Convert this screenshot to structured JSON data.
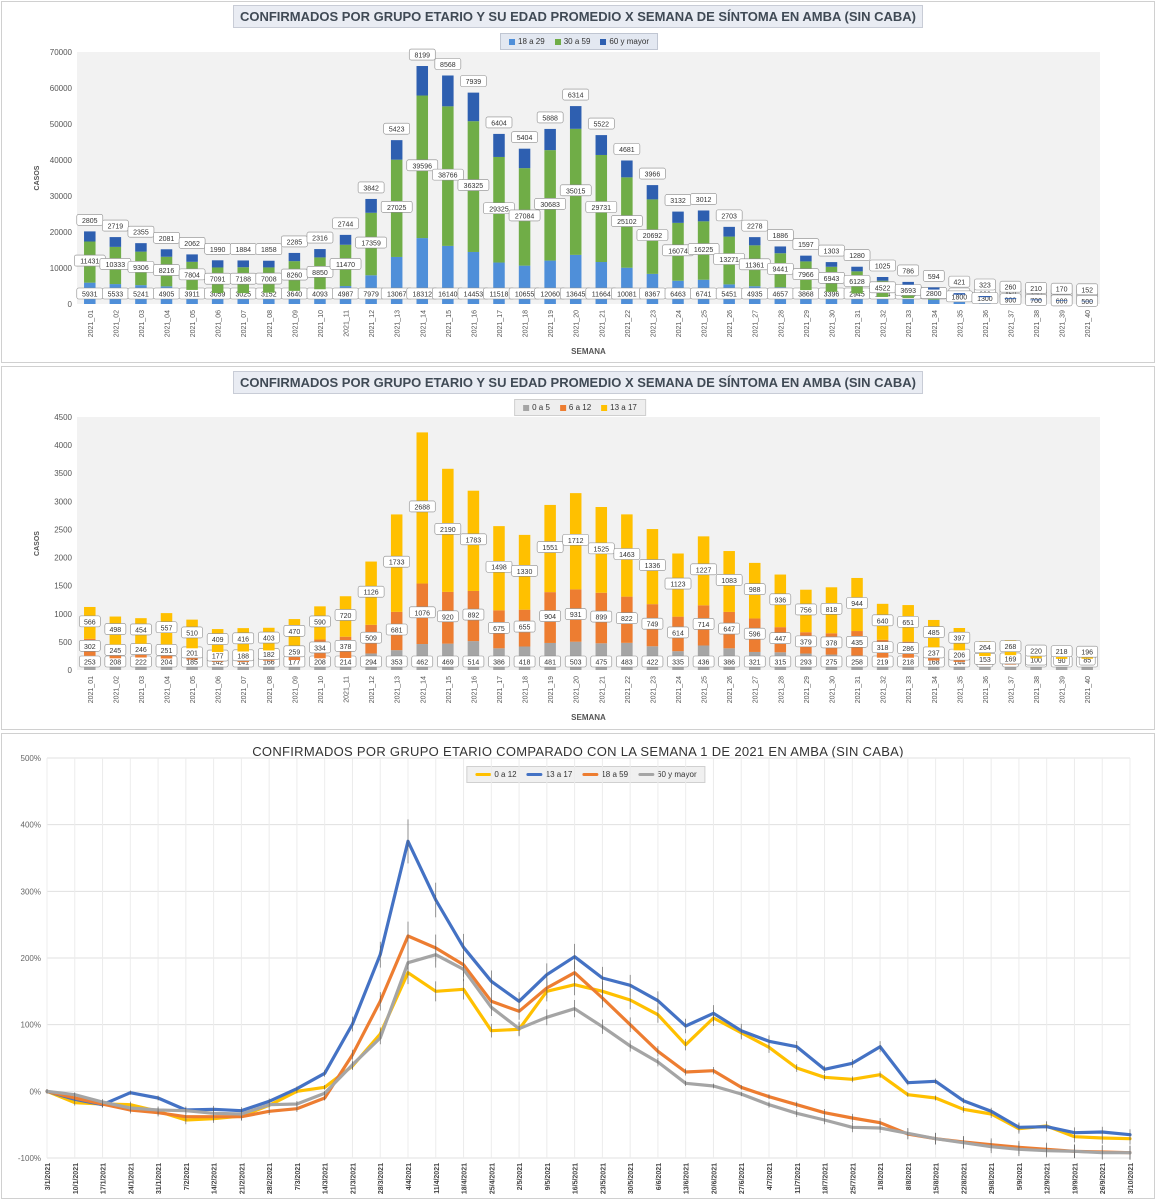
{
  "chart_data": [
    {
      "type": "bar",
      "stacked": true,
      "title": "CONFIRMADOS POR GRUPO ETARIO Y SU EDAD PROMEDIO X SEMANA DE SÍNTOMA EN AMBA (SIN CABA)",
      "xlabel": "SEMANA",
      "ylabel": "CASOS",
      "ylim": [
        0,
        70000
      ],
      "yticks": [
        "0",
        "10000",
        "20000",
        "30000",
        "40000",
        "50000",
        "60000",
        "70000"
      ],
      "grid": false,
      "legend": "top-center",
      "categories": [
        "2021_01",
        "2021_02",
        "2021_03",
        "2021_04",
        "2021_05",
        "2021_06",
        "2021_07",
        "2021_08",
        "2021_09",
        "2021_10",
        "2021_11",
        "2021_12",
        "2021_13",
        "2021_14",
        "2021_15",
        "2021_16",
        "2021_17",
        "2021_18",
        "2021_19",
        "2021_20",
        "2021_21",
        "2021_22",
        "2021_23",
        "2021_24",
        "2021_25",
        "2021_26",
        "2021_27",
        "2021_28",
        "2021_29",
        "2021_30",
        "2021_31",
        "2021_32",
        "2021_33",
        "2021_34",
        "2021_35",
        "2021_36",
        "2021_37",
        "2021_38",
        "2021_39",
        "2021_40"
      ],
      "series": [
        {
          "name": "18 a 29",
          "color": "#4f8fd9",
          "values": [
            5931,
            5533,
            5241,
            4905,
            3911,
            3059,
            3025,
            3152,
            3640,
            4093,
            4987,
            7979,
            13067,
            18312,
            16140,
            14453,
            11518,
            10655,
            12060,
            13645,
            11664,
            10081,
            8367,
            6463,
            6741,
            5451,
            4935,
            4657,
            3868,
            3396,
            2945,
            1954,
            1659,
            1209,
            800,
            600,
            450,
            350,
            280,
            230
          ]
        },
        {
          "name": "30 a 59",
          "color": "#70ad47",
          "values": [
            11431,
            10333,
            9306,
            8216,
            7804,
            7091,
            7188,
            7008,
            8260,
            8850,
            11470,
            17359,
            27025,
            39596,
            38766,
            36325,
            29325,
            27084,
            30683,
            35015,
            29731,
            25102,
            20692,
            16074,
            16225,
            13271,
            11361,
            9441,
            7966,
            6943,
            6128,
            4522,
            3693,
            2800,
            1800,
            1300,
            900,
            700,
            600,
            500
          ]
        },
        {
          "name": "60 y mayor",
          "color": "#2e5fb0",
          "values": [
            2805,
            2719,
            2355,
            2081,
            2062,
            1990,
            1884,
            1858,
            2285,
            2316,
            2744,
            3842,
            5423,
            8199,
            8568,
            7939,
            6404,
            5404,
            5888,
            6314,
            5522,
            4681,
            3966,
            3132,
            3012,
            2703,
            2278,
            1886,
            1597,
            1303,
            1280,
            1025,
            786,
            594,
            421,
            323,
            260,
            210,
            170,
            152
          ]
        }
      ]
    },
    {
      "type": "bar",
      "stacked": true,
      "title": "CONFIRMADOS POR GRUPO ETARIO Y SU EDAD PROMEDIO X SEMANA DE SÍNTOMA EN AMBA (SIN CABA)",
      "xlabel": "SEMANA",
      "ylabel": "CASOS",
      "ylim": [
        0,
        4500
      ],
      "yticks": [
        "0",
        "500",
        "1000",
        "1500",
        "2000",
        "2500",
        "3000",
        "3500",
        "4000",
        "4500"
      ],
      "grid": false,
      "legend": "top-center",
      "categories": [
        "2021_01",
        "2021_02",
        "2021_03",
        "2021_04",
        "2021_05",
        "2021_06",
        "2021_07",
        "2021_08",
        "2021_09",
        "2021_10",
        "2021_11",
        "2021_12",
        "2021_13",
        "2021_14",
        "2021_15",
        "2021_16",
        "2021_17",
        "2021_18",
        "2021_19",
        "2021_20",
        "2021_21",
        "2021_22",
        "2021_23",
        "2021_24",
        "2021_25",
        "2021_26",
        "2021_27",
        "2021_28",
        "2021_29",
        "2021_30",
        "2021_31",
        "2021_32",
        "2021_33",
        "2021_34",
        "2021_35",
        "2021_36",
        "2021_37",
        "2021_38",
        "2021_39",
        "2021_40"
      ],
      "series": [
        {
          "name": "0 a 5",
          "color": "#a5a5a5",
          "values": [
            253,
            208,
            222,
            204,
            185,
            142,
            141,
            166,
            177,
            208,
            214,
            294,
            353,
            462,
            469,
            514,
            386,
            418,
            481,
            503,
            475,
            483,
            422,
            335,
            436,
            386,
            321,
            315,
            293,
            275,
            258,
            219,
            218,
            168,
            144,
            95,
            95,
            109,
            108,
            116
          ]
        },
        {
          "name": "6 a 12",
          "color": "#ed7d31",
          "values": [
            302,
            245,
            246,
            251,
            201,
            177,
            188,
            182,
            259,
            334,
            378,
            509,
            681,
            1076,
            920,
            892,
            675,
            655,
            904,
            931,
            899,
            822,
            749,
            614,
            714,
            647,
            596,
            447,
            379,
            378,
            435,
            318,
            286,
            237,
            206,
            153,
            169,
            100,
            90,
            85
          ]
        },
        {
          "name": "13 a 17",
          "color": "#ffc000",
          "values": [
            566,
            498,
            454,
            557,
            510,
            409,
            416,
            403,
            470,
            590,
            720,
            1126,
            1733,
            2688,
            2190,
            1783,
            1498,
            1330,
            1551,
            1712,
            1525,
            1463,
            1336,
            1123,
            1227,
            1083,
            988,
            936,
            756,
            818,
            944,
            640,
            651,
            485,
            397,
            264,
            268,
            220,
            218,
            196
          ]
        }
      ]
    },
    {
      "type": "line",
      "title": "CONFIRMADOS POR GRUPO ETARIO COMPARADO CON LA SEMANA 1 DE 2021 EN AMBA (SIN CABA)",
      "xlabel": "",
      "ylabel": "",
      "ylim": [
        -100,
        500
      ],
      "yticks": [
        "-100%",
        "0%",
        "100%",
        "200%",
        "300%",
        "400%",
        "500%"
      ],
      "grid": true,
      "legend": "top-center",
      "x": [
        "3/1/2021",
        "10/1/2021",
        "17/1/2021",
        "24/1/2021",
        "31/1/2021",
        "7/2/2021",
        "14/2/2021",
        "21/2/2021",
        "28/2/2021",
        "7/3/2021",
        "14/3/2021",
        "21/3/2021",
        "28/3/2021",
        "4/4/2021",
        "11/4/2021",
        "18/4/2021",
        "25/4/2021",
        "2/5/2021",
        "9/5/2021",
        "16/5/2021",
        "23/5/2021",
        "30/5/2021",
        "6/6/2021",
        "13/6/2021",
        "20/6/2021",
        "27/6/2021",
        "4/7/2021",
        "11/7/2021",
        "18/7/2021",
        "25/7/2021",
        "1/8/2021",
        "8/8/2021",
        "15/8/2021",
        "22/8/2021",
        "29/8/2021",
        "5/9/2021",
        "12/9/2021",
        "19/9/2021",
        "26/9/2021",
        "3/10/2021"
      ],
      "series": [
        {
          "name": "0 a 12",
          "color": "#ffc000",
          "values": [
            0,
            -17,
            -19,
            -20,
            -30,
            -43,
            -41,
            -37,
            -21,
            0,
            6,
            38,
            86,
            178,
            150,
            153,
            91,
            93,
            150,
            160,
            150,
            137,
            115,
            70,
            110,
            88,
            66,
            35,
            21,
            18,
            25,
            -5,
            -10,
            -27,
            -34,
            -56,
            -52,
            -68,
            -70,
            -71
          ]
        },
        {
          "name": "13 a 17",
          "color": "#4472c4",
          "values": [
            0,
            -12,
            -20,
            -2,
            -10,
            -28,
            -27,
            -29,
            -15,
            4,
            27,
            101,
            205,
            375,
            287,
            216,
            165,
            135,
            175,
            202,
            170,
            159,
            136,
            98,
            117,
            91,
            75,
            67,
            33,
            42,
            67,
            13,
            15,
            -14,
            -30,
            -54,
            -53,
            -62,
            -61,
            -65
          ]
        },
        {
          "name": "18 a 59",
          "color": "#ed7d31",
          "values": [
            0,
            -10,
            -19,
            -28,
            -32,
            -38,
            -38,
            -38,
            -30,
            -26,
            -10,
            55,
            135,
            233,
            215,
            190,
            135,
            120,
            155,
            178,
            140,
            100,
            60,
            29,
            31,
            6,
            -8,
            -20,
            -32,
            -40,
            -47,
            -64,
            -71,
            -76,
            -80,
            -84,
            -87,
            -90,
            -91,
            -92
          ]
        },
        {
          "name": "60 y mayor",
          "color": "#a5a5a5",
          "values": [
            0,
            -5,
            -16,
            -25,
            -28,
            -29,
            -33,
            -34,
            -20,
            -19,
            -3,
            40,
            80,
            193,
            205,
            183,
            126,
            94,
            111,
            124,
            97,
            68,
            44,
            12,
            8,
            -4,
            -20,
            -33,
            -43,
            -54,
            -55,
            -63,
            -71,
            -77,
            -83,
            -87,
            -89,
            -90,
            -92,
            -92
          ]
        }
      ]
    }
  ]
}
